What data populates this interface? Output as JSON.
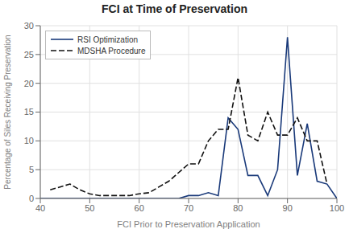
{
  "chart_data": {
    "type": "line",
    "title": "FCI at Time of Preservation",
    "xlabel": "FCI Prior to Preservation Application",
    "ylabel": "Percentage of Siles Receiving Preservation",
    "xlim": [
      40,
      100
    ],
    "ylim": [
      0,
      30
    ],
    "xticks": [
      40,
      50,
      60,
      70,
      80,
      90,
      100
    ],
    "yticks": [
      0,
      5,
      10,
      15,
      20,
      25,
      30
    ],
    "grid": true,
    "legend": "upper left",
    "series": [
      {
        "name": "RSI Optimization",
        "color": "#1a3a7a",
        "line_style": "solid",
        "x": [
          40,
          44,
          48,
          52,
          56,
          60,
          64,
          68,
          70,
          72,
          74,
          76,
          78,
          80,
          82,
          84,
          86,
          88,
          90,
          92,
          94,
          96,
          98,
          100
        ],
        "values": [
          0,
          0,
          0,
          0,
          0,
          0,
          0,
          0,
          0.5,
          0.5,
          1.0,
          0.5,
          14,
          12,
          4,
          4,
          0.5,
          5,
          28,
          4,
          13,
          3,
          2.5,
          0
        ]
      },
      {
        "name": "MDSHA Procedure",
        "color": "#111111",
        "line_style": "dashed",
        "x": [
          42,
          44,
          46,
          48,
          50,
          52,
          54,
          56,
          58,
          60,
          62,
          64,
          66,
          68,
          70,
          72,
          74,
          76,
          78,
          80,
          82,
          84,
          86,
          88,
          90,
          92,
          94,
          96,
          98
        ],
        "values": [
          1.5,
          2.0,
          2.5,
          1.5,
          0.8,
          0.5,
          0.5,
          0.5,
          0.5,
          0.8,
          1.0,
          2.0,
          3.0,
          4.5,
          6.0,
          6.0,
          10,
          12,
          12,
          21,
          11,
          10,
          15,
          11,
          11,
          14,
          10,
          10,
          2.5
        ]
      }
    ]
  }
}
